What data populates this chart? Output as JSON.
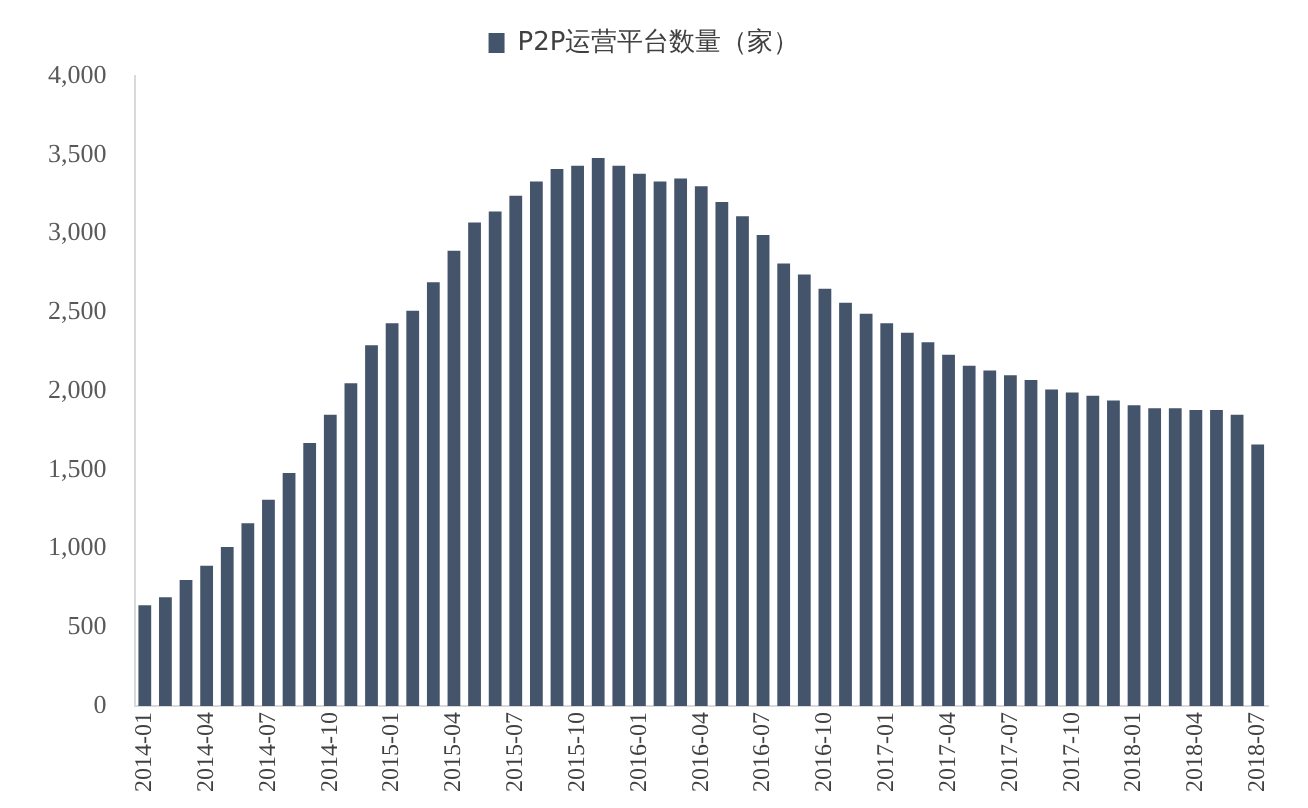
{
  "chart_data": {
    "type": "bar",
    "categories": [
      "2014-01",
      null,
      null,
      "2014-04",
      null,
      null,
      "2014-07",
      null,
      null,
      "2014-10",
      null,
      null,
      "2015-01",
      null,
      null,
      "2015-04",
      null,
      null,
      "2015-07",
      null,
      null,
      "2015-10",
      null,
      null,
      "2016-01",
      null,
      null,
      "2016-04",
      null,
      null,
      "2016-07",
      null,
      null,
      "2016-10",
      null,
      null,
      "2017-01",
      null,
      null,
      "2017-04",
      null,
      null,
      "2017-07",
      null,
      null,
      "2017-10",
      null,
      null,
      "2018-01",
      null,
      null,
      "2018-04",
      null,
      null,
      "2018-07"
    ],
    "series": [
      {
        "name": "P2P运营平台数量（家）",
        "color": "#44546a",
        "values": [
          640,
          690,
          800,
          890,
          1010,
          1160,
          1310,
          1480,
          1670,
          1850,
          2050,
          2290,
          2430,
          2510,
          2690,
          2890,
          3070,
          3140,
          3240,
          3330,
          3410,
          3430,
          3480,
          3430,
          3380,
          3330,
          3350,
          3300,
          3200,
          3110,
          2990,
          2810,
          2740,
          2650,
          2560,
          2490,
          2430,
          2370,
          2310,
          2230,
          2160,
          2130,
          2100,
          2070,
          2010,
          1990,
          1970,
          1940,
          1910,
          1890,
          1890,
          1880,
          1880,
          1850,
          1660
        ]
      }
    ],
    "ylim": [
      0,
      4000
    ],
    "yticks": [
      0,
      500,
      {
        "value": 1000,
        "label": "1,000"
      },
      {
        "value": 1500,
        "label": "1,500"
      },
      {
        "value": 2000,
        "label": "2,000"
      },
      {
        "value": 2500,
        "label": "2,500"
      },
      {
        "value": 3000,
        "label": "3,000"
      },
      {
        "value": 3500,
        "label": "3,500"
      },
      {
        "value": 4000,
        "label": "4,000"
      }
    ],
    "grid": false,
    "legend": "top"
  }
}
